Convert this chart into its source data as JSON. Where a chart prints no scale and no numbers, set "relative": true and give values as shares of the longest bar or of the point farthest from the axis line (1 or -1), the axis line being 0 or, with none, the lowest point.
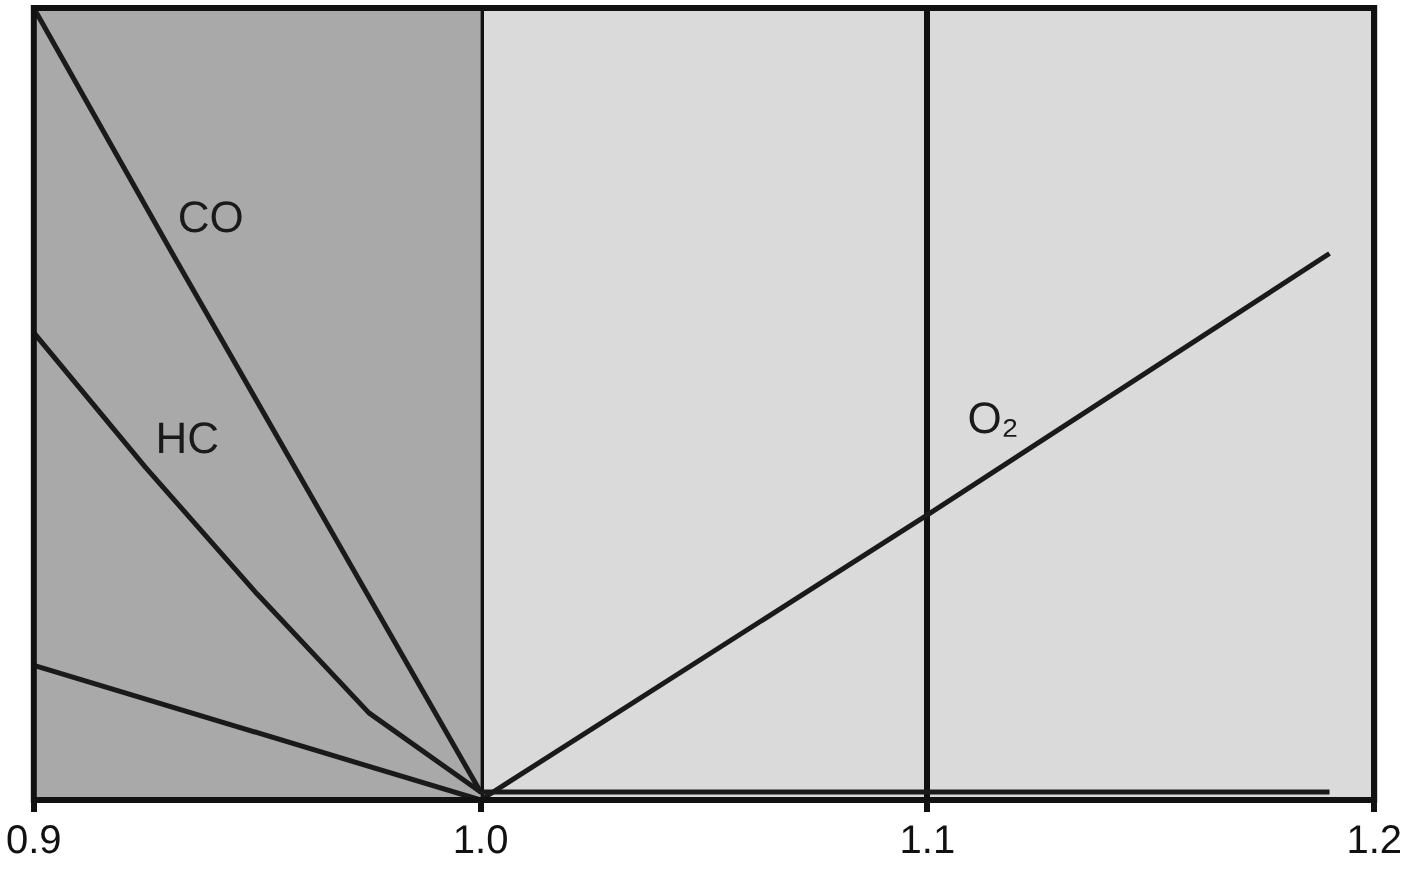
{
  "chart_data": {
    "type": "line",
    "relative": true,
    "xlim": [
      0.9,
      1.2
    ],
    "xticks": [
      0.9,
      {
        "value": 1,
        "label": "1.0"
      },
      1.1,
      1.2
    ],
    "tick_labels": "x",
    "grid": "x",
    "legend": false,
    "marker": "none",
    "series": [
      {
        "name": "CO",
        "color": "#1a1a1a",
        "x": [
          0.9,
          0.93,
          1.0,
          1.19
        ],
        "values": [
          1,
          0.7,
          0.01,
          0.01
        ]
      },
      {
        "name": "HC",
        "color": "#1a1a1a",
        "x": [
          0.9,
          0.925,
          0.95,
          0.975,
          1.0
        ],
        "values": [
          0.59,
          0.42,
          0.26,
          0.11,
          0.01
        ]
      },
      {
        "color": "#1a1a1a",
        "x": [
          0.9,
          1.0
        ],
        "values": [
          0.17,
          0
        ]
      },
      {
        "name": "O₂",
        "color": "#1a1a1a",
        "x": [
          1.0,
          1.1,
          1.19
        ],
        "values": [
          0,
          0.36,
          0.69
        ]
      }
    ],
    "bands": [
      {
        "axis": "x",
        "from": 0.9,
        "to": 1.0,
        "color": "#a9a9a9"
      }
    ]
  }
}
